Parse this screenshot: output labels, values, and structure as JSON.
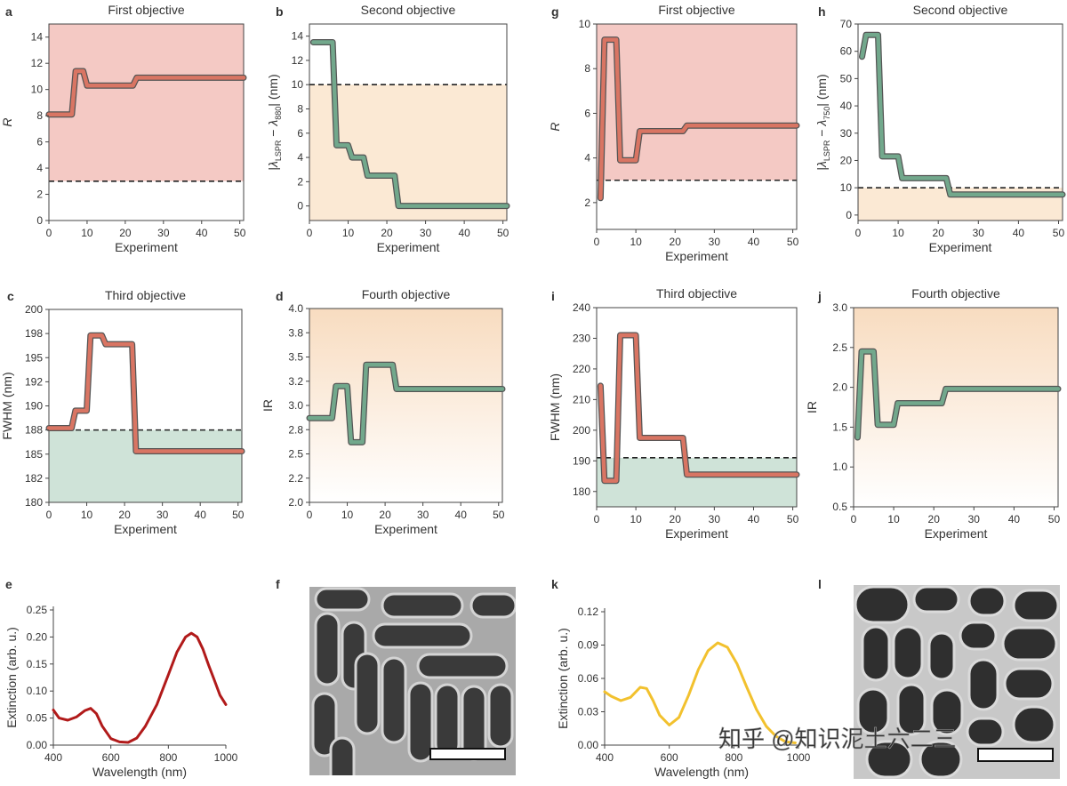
{
  "chart_data": [
    {
      "panel": "a",
      "type": "line",
      "title": "First objective",
      "xlabel": "Experiment",
      "ylabel": "R",
      "xlim": [
        0,
        51
      ],
      "ylim": [
        0,
        15
      ],
      "xticks": [
        "0",
        "10",
        "20",
        "30",
        "40",
        "50"
      ],
      "yticks": [
        "0",
        "2",
        "4",
        "6",
        "8",
        "10",
        "12",
        "14"
      ],
      "threshold": 3,
      "region": {
        "from": 3,
        "to": 15,
        "color": "#f4c9c4"
      },
      "series": [
        {
          "name": "objective",
          "color": "#d97563",
          "x": [
            0,
            6,
            7,
            9,
            10,
            22,
            23,
            51
          ],
          "y": [
            8.1,
            8.1,
            11.4,
            11.4,
            10.3,
            10.3,
            10.9,
            10.9
          ]
        }
      ]
    },
    {
      "panel": "b",
      "type": "line",
      "title": "Second objective",
      "xlabel": "Experiment",
      "ylabel": "|λLSPR − λ880| (nm)",
      "ylabel_parts": {
        "open": "|",
        "lam1": "λ",
        "sub1": "LSPR",
        "mid": " − ",
        "lam2": "λ",
        "sub2": "880",
        "close": "| (nm)"
      },
      "xlim": [
        0,
        51
      ],
      "ylim": [
        -1.2,
        15
      ],
      "xticks": [
        "0",
        "10",
        "20",
        "30",
        "40",
        "50"
      ],
      "yticks": [
        "0",
        "2",
        "4",
        "6",
        "8",
        "10",
        "12",
        "14"
      ],
      "threshold": 10,
      "region": {
        "from": -1.2,
        "to": 10,
        "color": "#fbe9d4"
      },
      "series": [
        {
          "name": "objective",
          "color": "#72a88c",
          "x": [
            1,
            6,
            7,
            10,
            11,
            14,
            15,
            22,
            23,
            51
          ],
          "y": [
            13.5,
            13.5,
            5,
            5,
            4,
            4,
            2.5,
            2.5,
            0,
            0
          ]
        }
      ]
    },
    {
      "panel": "c",
      "type": "line",
      "title": "Third objective",
      "xlabel": "Experiment",
      "ylabel": "FWHM (nm)",
      "xlim": [
        0,
        51
      ],
      "ylim": [
        180,
        200
      ],
      "xticks": [
        "0",
        "10",
        "20",
        "30",
        "40",
        "50"
      ],
      "yticks": [
        "180",
        "182",
        "185",
        "188",
        "190",
        "192",
        "195",
        "198",
        "200"
      ],
      "ytick_values": [
        180,
        182.5,
        185,
        187.5,
        190,
        192.5,
        195,
        197.5,
        200
      ],
      "threshold": 187.5,
      "region": {
        "from": 180,
        "to": 187.5,
        "color": "#cfe3d8"
      },
      "series": [
        {
          "name": "objective",
          "color": "#d97563",
          "x": [
            0,
            6,
            7,
            10,
            11,
            14,
            15,
            22,
            23,
            51
          ],
          "y": [
            187.7,
            187.7,
            189.5,
            189.5,
            197.3,
            197.3,
            196.4,
            196.4,
            185.3,
            185.3
          ]
        }
      ]
    },
    {
      "panel": "d",
      "type": "line",
      "title": "Fourth objective",
      "xlabel": "Experiment",
      "ylabel": "IR",
      "xlim": [
        0,
        51
      ],
      "ylim": [
        2.0,
        4.0
      ],
      "xticks": [
        "0",
        "10",
        "20",
        "30",
        "40",
        "50"
      ],
      "yticks": [
        "2.0",
        "2.2",
        "2.5",
        "2.8",
        "3.0",
        "3.2",
        "3.5",
        "3.8",
        "4.0"
      ],
      "ytick_values": [
        2.0,
        2.25,
        2.5,
        2.75,
        3.0,
        3.25,
        3.5,
        3.75,
        4.0
      ],
      "region": {
        "from": 2.0,
        "to": 4.0,
        "color": "#fbe9d4",
        "gradient": true
      },
      "series": [
        {
          "name": "objective",
          "color": "#72a88c",
          "x": [
            0,
            6,
            7,
            9,
            10,
            11,
            12,
            14,
            15,
            22,
            23,
            51
          ],
          "y": [
            2.87,
            2.87,
            3.2,
            3.2,
            3.2,
            2.62,
            2.62,
            2.62,
            3.42,
            3.42,
            3.17,
            3.17
          ]
        }
      ]
    },
    {
      "panel": "e",
      "type": "line",
      "title": "",
      "xlabel": "Wavelength (nm)",
      "ylabel": "Extinction (arb. u.)",
      "xlim": [
        400,
        1000
      ],
      "ylim": [
        0,
        0.25
      ],
      "xticks": [
        "400",
        "600",
        "800",
        "1000"
      ],
      "yticks": [
        "0.00",
        "0.05",
        "0.10",
        "0.15",
        "0.20",
        "0.25"
      ],
      "series": [
        {
          "name": "spectrum",
          "color": "#b11a1a",
          "x": [
            400,
            420,
            450,
            480,
            510,
            530,
            550,
            570,
            600,
            630,
            660,
            690,
            720,
            760,
            800,
            830,
            860,
            880,
            900,
            920,
            940,
            960,
            980,
            1000
          ],
          "y": [
            0.065,
            0.05,
            0.046,
            0.052,
            0.064,
            0.068,
            0.058,
            0.035,
            0.012,
            0.006,
            0.005,
            0.013,
            0.035,
            0.075,
            0.13,
            0.172,
            0.2,
            0.207,
            0.2,
            0.178,
            0.148,
            0.12,
            0.092,
            0.075
          ]
        }
      ]
    },
    {
      "panel": "g",
      "type": "line",
      "title": "First objective",
      "xlabel": "Experiment",
      "ylabel": "R",
      "xlim": [
        0,
        51
      ],
      "ylim": [
        0.8,
        10
      ],
      "xticks": [
        "0",
        "10",
        "20",
        "30",
        "40",
        "50"
      ],
      "yticks": [
        "2",
        "4",
        "6",
        "8",
        "10"
      ],
      "threshold": 3,
      "region": {
        "from": 3,
        "to": 10,
        "color": "#f4c9c4"
      },
      "series": [
        {
          "name": "objective",
          "color": "#d97563",
          "x": [
            1,
            2,
            5,
            6,
            10,
            11,
            22,
            23,
            51
          ],
          "y": [
            2.2,
            9.3,
            9.3,
            3.9,
            3.9,
            5.2,
            5.2,
            5.45,
            5.45
          ]
        }
      ]
    },
    {
      "panel": "h",
      "type": "line",
      "title": "Second objective",
      "xlabel": "Experiment",
      "ylabel": "|λLSPR − λ750| (nm)",
      "ylabel_parts": {
        "open": "|",
        "lam1": "λ",
        "sub1": "LSPR",
        "mid": " − ",
        "lam2": "λ",
        "sub2": "750",
        "close": "| (nm)"
      },
      "xlim": [
        0,
        51
      ],
      "ylim": [
        -2,
        70
      ],
      "xticks": [
        "0",
        "10",
        "20",
        "30",
        "40",
        "50"
      ],
      "yticks": [
        "0",
        "10",
        "20",
        "30",
        "40",
        "50",
        "60",
        "70"
      ],
      "threshold": 10,
      "region": {
        "from": -2,
        "to": 10,
        "color": "#fbe9d4"
      },
      "series": [
        {
          "name": "objective",
          "color": "#72a88c",
          "x": [
            1,
            2,
            5,
            6,
            10,
            11,
            22,
            23,
            51
          ],
          "y": [
            58,
            66,
            66,
            21.5,
            21.5,
            13.5,
            13.5,
            7.5,
            7.5
          ]
        }
      ]
    },
    {
      "panel": "i",
      "type": "line",
      "title": "Third objective",
      "xlabel": "Experiment",
      "ylabel": "FWHM (nm)",
      "xlim": [
        0,
        51
      ],
      "ylim": [
        175,
        240
      ],
      "xticks": [
        "0",
        "10",
        "20",
        "30",
        "40",
        "50"
      ],
      "yticks": [
        "180",
        "190",
        "200",
        "210",
        "220",
        "230",
        "240"
      ],
      "threshold": 191,
      "region": {
        "from": 175,
        "to": 191,
        "color": "#cfe3d8"
      },
      "series": [
        {
          "name": "objective",
          "color": "#d97563",
          "x": [
            1,
            2,
            5,
            6,
            10,
            11,
            22,
            23,
            51
          ],
          "y": [
            214.5,
            183.5,
            183.5,
            231,
            231,
            197.5,
            197.5,
            185.5,
            185.5
          ]
        }
      ]
    },
    {
      "panel": "j",
      "type": "line",
      "title": "Fourth objective",
      "xlabel": "Experiment",
      "ylabel": "IR",
      "xlim": [
        0,
        51
      ],
      "ylim": [
        0.5,
        3.0
      ],
      "xticks": [
        "0",
        "10",
        "20",
        "30",
        "40",
        "50"
      ],
      "yticks": [
        "0.5",
        "1.0",
        "1.5",
        "2.0",
        "2.5",
        "3.0"
      ],
      "region": {
        "from": 0.5,
        "to": 3.0,
        "color": "#fbe9d4",
        "gradient": true
      },
      "series": [
        {
          "name": "objective",
          "color": "#72a88c",
          "x": [
            1,
            2,
            5,
            6,
            10,
            11,
            22,
            23,
            51
          ],
          "y": [
            1.37,
            2.45,
            2.45,
            1.53,
            1.53,
            1.8,
            1.8,
            1.98,
            1.98
          ]
        }
      ]
    },
    {
      "panel": "k",
      "type": "line",
      "title": "",
      "xlabel": "Wavelength (nm)",
      "ylabel": "Extinction (arb. u.)",
      "xlim": [
        400,
        1000
      ],
      "ylim": [
        0,
        0.12
      ],
      "xticks": [
        "400",
        "600",
        "800",
        "1000"
      ],
      "yticks": [
        "0.00",
        "0.03",
        "0.06",
        "0.09",
        "0.12"
      ],
      "series": [
        {
          "name": "spectrum",
          "color": "#f2c12e",
          "x": [
            400,
            420,
            450,
            480,
            510,
            530,
            550,
            570,
            600,
            630,
            660,
            690,
            720,
            750,
            780,
            810,
            840,
            870,
            900,
            930,
            960,
            990
          ],
          "y": [
            0.048,
            0.044,
            0.04,
            0.043,
            0.052,
            0.051,
            0.04,
            0.027,
            0.018,
            0.025,
            0.045,
            0.068,
            0.085,
            0.092,
            0.088,
            0.073,
            0.052,
            0.032,
            0.017,
            0.008,
            0.003,
            0.002
          ]
        }
      ]
    }
  ],
  "panel_labels": {
    "a": "a",
    "b": "b",
    "c": "c",
    "d": "d",
    "e": "e",
    "f": "f",
    "g": "g",
    "h": "h",
    "i": "i",
    "j": "j",
    "k": "k",
    "l": "l"
  },
  "micrographs": [
    {
      "panel": "f",
      "description_name": "tem-micrograph-nanorods",
      "scale_bar": true
    },
    {
      "panel": "l",
      "description_name": "tem-micrograph-nanorods",
      "scale_bar": true
    }
  ],
  "watermark": "知乎 @知识泥土六二三",
  "colors": {
    "red_line": "#d97563",
    "green_line": "#72a88c",
    "red_region": "#f4c9c4",
    "orange_region": "#fbe9d4",
    "green_region": "#cfe3d8",
    "spectrum_e": "#b11a1a",
    "spectrum_k": "#f2c12e"
  }
}
